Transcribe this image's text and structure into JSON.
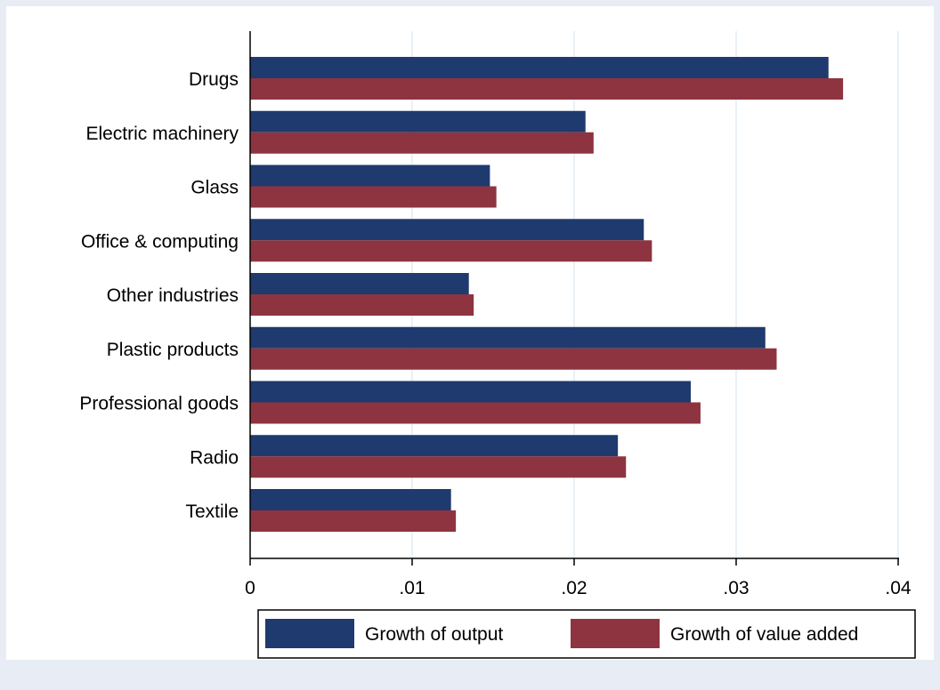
{
  "colors": {
    "background": "#e8ecf4",
    "plot_background": "#ffffff",
    "series_output": "#1f3a6e",
    "series_value_added": "#8e3440",
    "gridline": "#dbe5f1",
    "axis": "#000000"
  },
  "chart_data": {
    "type": "bar",
    "orientation": "horizontal",
    "categories": [
      "Drugs",
      "Electric machinery",
      "Glass",
      "Office & computing",
      "Other industries",
      "Plastic products",
      "Professional goods",
      "Radio",
      "Textile"
    ],
    "series": [
      {
        "name": "Growth of output",
        "color": "#1f3a6e",
        "values": [
          0.0357,
          0.0207,
          0.0148,
          0.0243,
          0.0135,
          0.0318,
          0.0272,
          0.0227,
          0.0124
        ]
      },
      {
        "name": "Growth of value added",
        "color": "#8e3440",
        "values": [
          0.0366,
          0.0212,
          0.0152,
          0.0248,
          0.0138,
          0.0325,
          0.0278,
          0.0232,
          0.0127
        ]
      }
    ],
    "xlim": [
      0,
      0.04
    ],
    "xticks": [
      0,
      0.01,
      0.02,
      0.03,
      0.04
    ],
    "xtick_labels": [
      "0",
      ".01",
      ".02",
      ".03",
      ".04"
    ],
    "title": "",
    "xlabel": "",
    "ylabel": "",
    "grid": "vertical",
    "legend_position": "bottom"
  }
}
